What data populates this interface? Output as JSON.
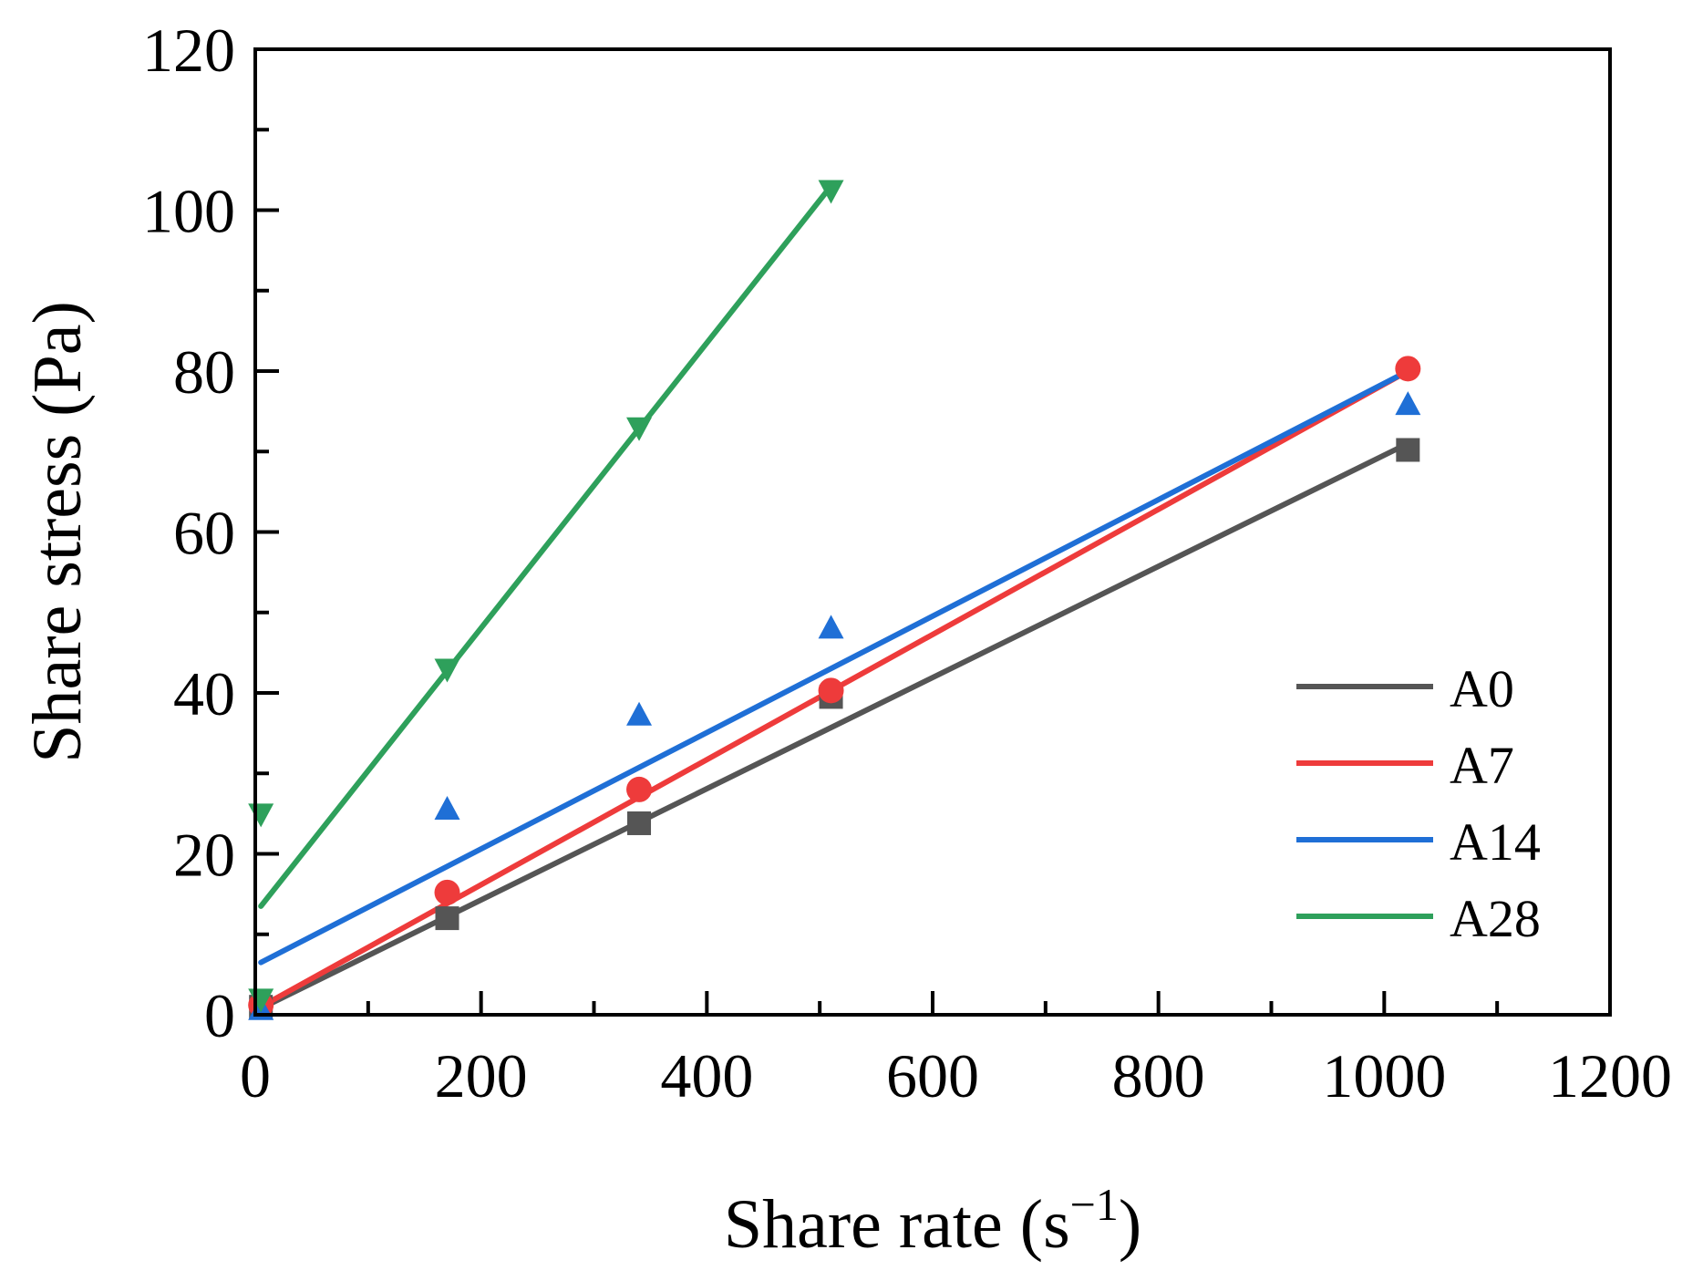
{
  "chart_data": {
    "type": "scatter",
    "xlabel": "Share rate (s",
    "xlabel_sup": "−1",
    "xlabel_close": ")",
    "ylabel": "Share stress (Pa)",
    "xlim": [
      0,
      1200
    ],
    "ylim": [
      0,
      120
    ],
    "xticks": [
      0,
      200,
      400,
      600,
      800,
      1000,
      1200
    ],
    "yticks": [
      0,
      20,
      40,
      60,
      80,
      100,
      120
    ],
    "x_minor_step": 100,
    "y_minor_step": 10,
    "grid": false,
    "legend_position": "bottom-right",
    "series": [
      {
        "name": "A0",
        "color": "#555555",
        "marker": "square",
        "points": [
          [
            5,
            1.0
          ],
          [
            170,
            12.0
          ],
          [
            340,
            23.8
          ],
          [
            510,
            39.5
          ],
          [
            1021,
            70.2
          ]
        ],
        "fit": [
          [
            5,
            0.8
          ],
          [
            1021,
            71.0
          ]
        ]
      },
      {
        "name": "A7",
        "color": "#EE3B3B",
        "marker": "circle",
        "points": [
          [
            5,
            1.2
          ],
          [
            170,
            15.2
          ],
          [
            340,
            28.0
          ],
          [
            510,
            40.3
          ],
          [
            1021,
            80.3
          ]
        ],
        "fit": [
          [
            5,
            1.0
          ],
          [
            1021,
            80.0
          ]
        ]
      },
      {
        "name": "A14",
        "color": "#1F6FD6",
        "marker": "triangle-up",
        "points": [
          [
            5,
            0.6
          ],
          [
            170,
            25.5
          ],
          [
            340,
            37.2
          ],
          [
            510,
            48.0
          ],
          [
            1021,
            75.8
          ]
        ],
        "fit": [
          [
            5,
            6.5
          ],
          [
            1021,
            80.0
          ]
        ]
      },
      {
        "name": "A28",
        "color": "#2EA05B",
        "marker": "triangle-down",
        "points": [
          [
            5,
            2.0
          ],
          [
            5,
            25.0
          ],
          [
            170,
            43.0
          ],
          [
            340,
            73.0
          ],
          [
            510,
            102.5
          ]
        ],
        "fit": [
          [
            5,
            13.5
          ],
          [
            510,
            103.0
          ]
        ]
      }
    ]
  }
}
